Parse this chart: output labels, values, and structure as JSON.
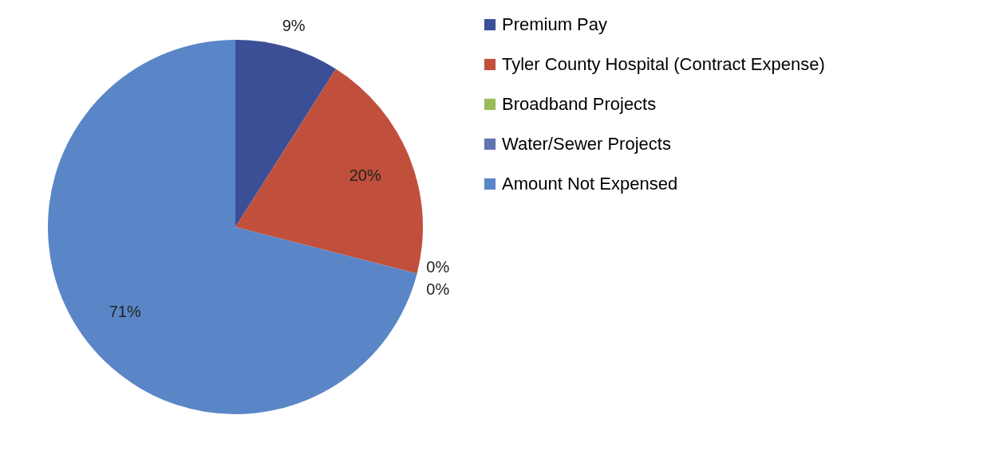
{
  "chart_data": {
    "type": "pie",
    "categories": [
      "Premium Pay",
      "Tyler County Hospital (Contract Expense)",
      "Broadband Projects",
      "Water/Sewer Projects",
      "Amount Not Expensed"
    ],
    "values": [
      9,
      20,
      0,
      0,
      71
    ],
    "value_labels": [
      "9%",
      "20%",
      "0%",
      "0%",
      "71%"
    ],
    "colors": [
      "#3b4f96",
      "#c0503c",
      "#9bbb59",
      "#6074b0",
      "#5a86c8"
    ],
    "legend": "right"
  }
}
